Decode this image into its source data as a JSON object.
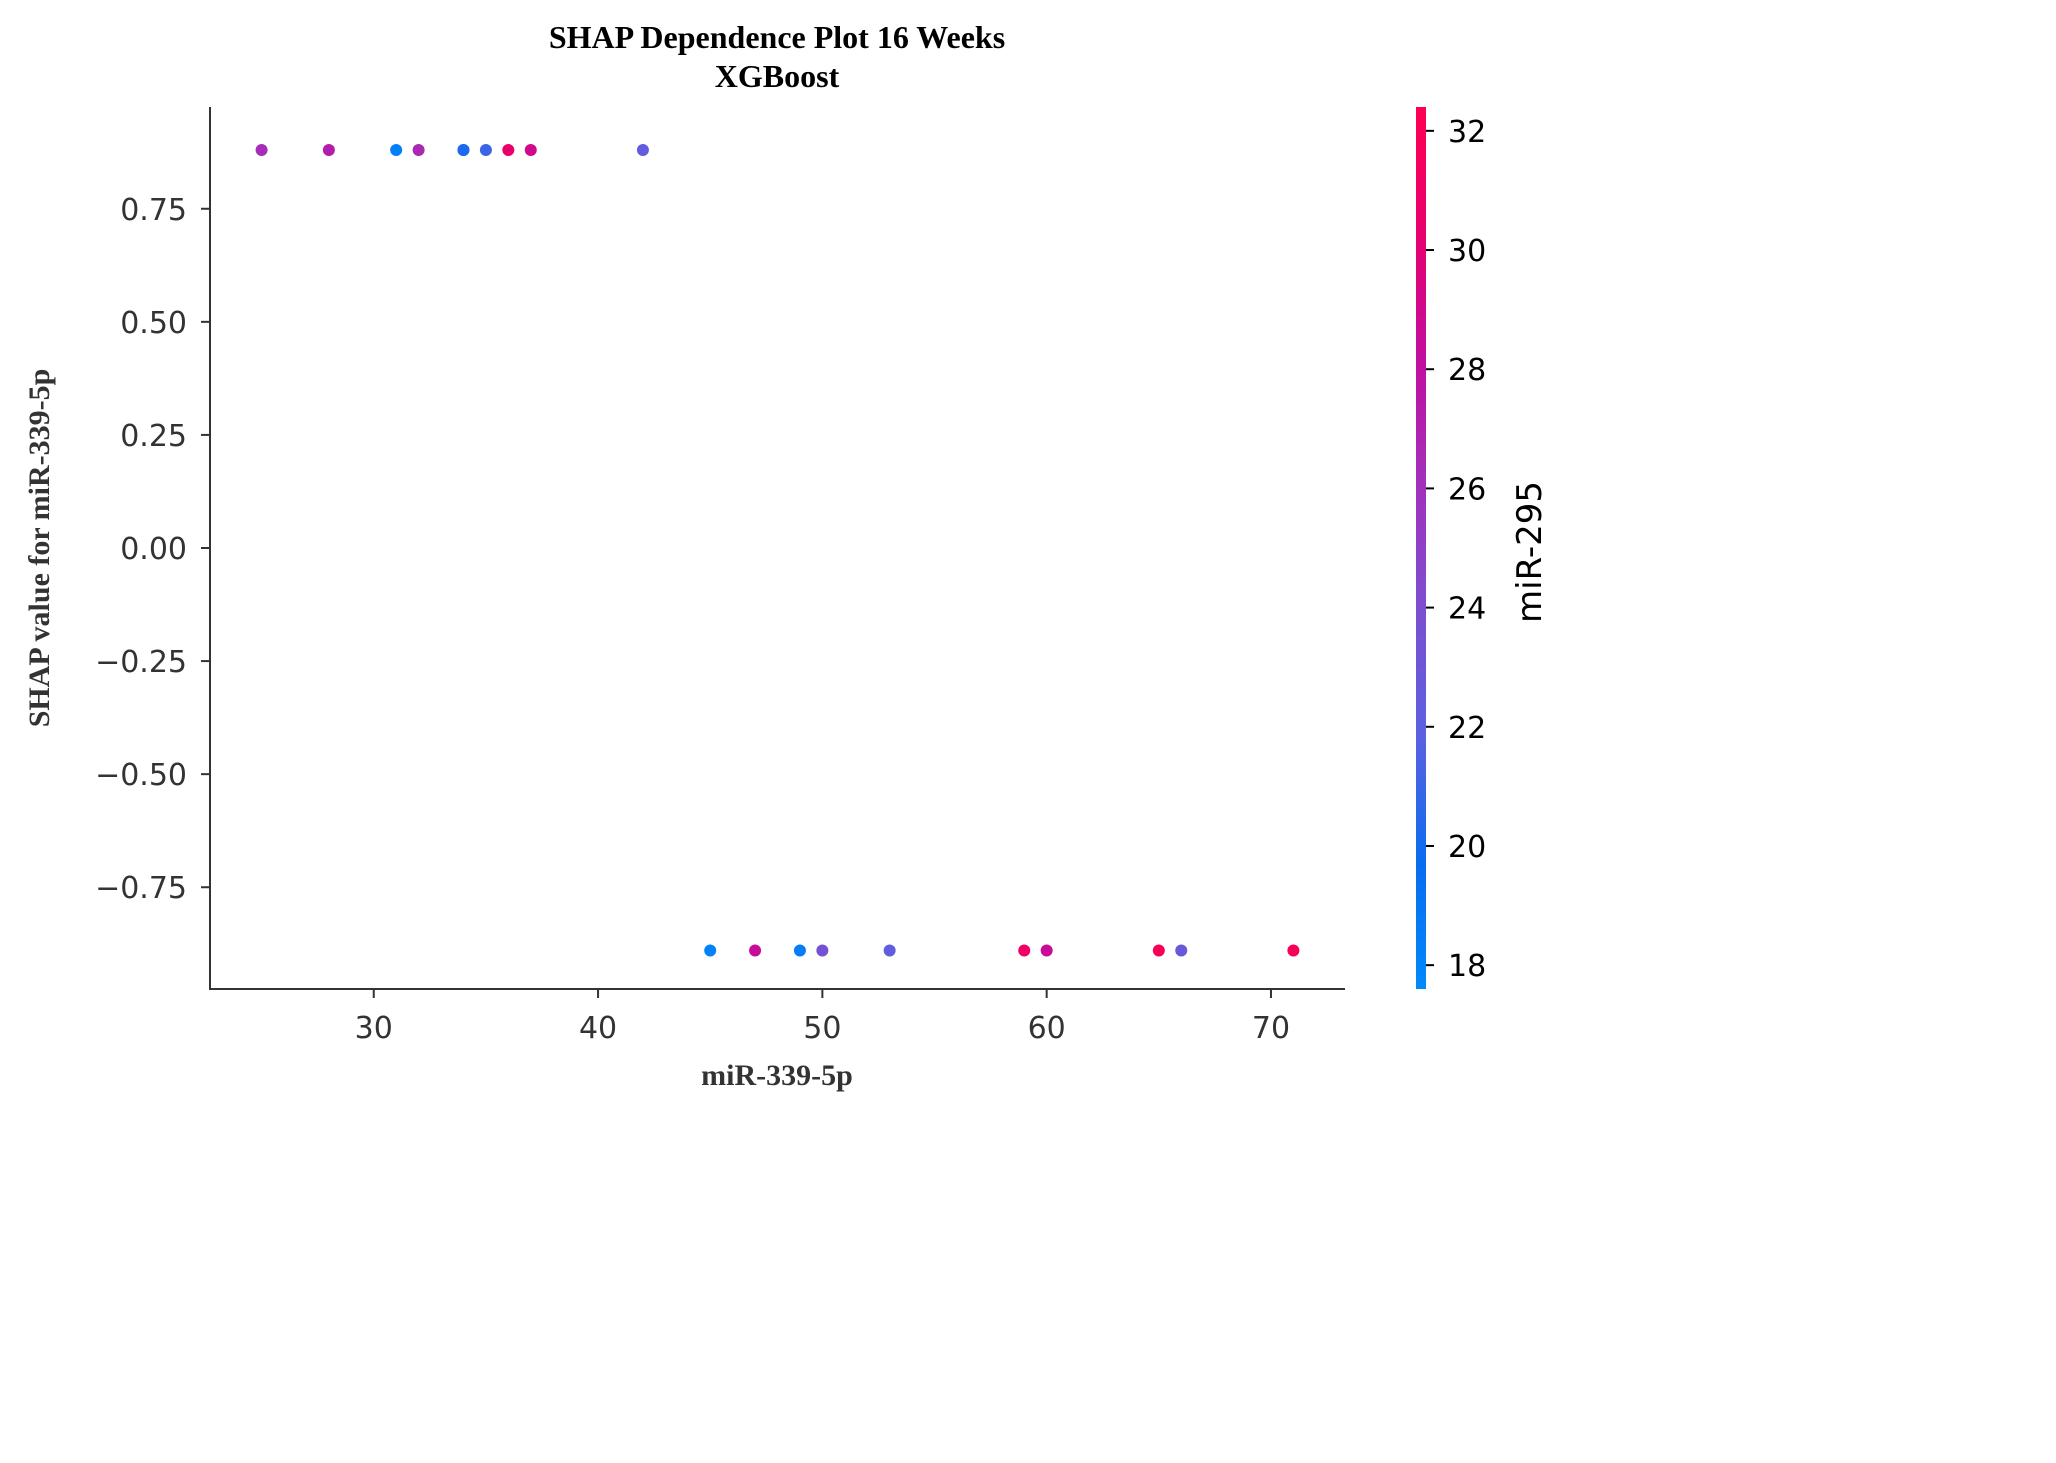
{
  "chart_data": {
    "type": "scatter",
    "title": "SHAP Dependence Plot 16 Weeks",
    "subtitle": "XGBoost",
    "xlabel": "miR-339-5p",
    "ylabel": "SHAP value for miR-339-5p",
    "xlim": [
      22.7,
      73.3
    ],
    "ylim": [
      -0.975,
      0.975
    ],
    "xticks": [
      30,
      40,
      50,
      60,
      70
    ],
    "xtick_labels": [
      "30",
      "40",
      "50",
      "60",
      "70"
    ],
    "yticks": [
      0.75,
      0.5,
      0.25,
      0.0,
      -0.25,
      -0.5,
      -0.75
    ],
    "ytick_labels": [
      "0.75",
      "0.50",
      "0.25",
      "0.00",
      "−0.25",
      "−0.50",
      "−0.75"
    ],
    "grid": false,
    "colorbar": {
      "label": "miR-295",
      "range": [
        17.6,
        32.4
      ],
      "ticks": [
        18,
        20,
        22,
        24,
        26,
        28,
        30,
        32
      ],
      "tick_labels": [
        "18",
        "20",
        "22",
        "24",
        "26",
        "28",
        "30",
        "32"
      ],
      "colormap": [
        "#008afb",
        "#0a6cf0",
        "#5a61e1",
        "#7c4fd0",
        "#a131bb",
        "#c20e9e",
        "#e7006e",
        "#ff0051"
      ]
    },
    "points": [
      {
        "x": 25,
        "y": 0.88,
        "c": 26.3
      },
      {
        "x": 28,
        "y": 0.88,
        "c": 27.3
      },
      {
        "x": 31,
        "y": 0.88,
        "c": 18.3
      },
      {
        "x": 32,
        "y": 0.88,
        "c": 26.5
      },
      {
        "x": 34,
        "y": 0.88,
        "c": 19.5
      },
      {
        "x": 34,
        "y": 0.88,
        "c": 20.2
      },
      {
        "x": 35,
        "y": 0.88,
        "c": 21.0
      },
      {
        "x": 36,
        "y": 0.88,
        "c": 30.5
      },
      {
        "x": 37,
        "y": 0.88,
        "c": 29.0
      },
      {
        "x": 42,
        "y": 0.88,
        "c": 22.4
      },
      {
        "x": 45,
        "y": -0.89,
        "c": 18.2
      },
      {
        "x": 47,
        "y": -0.89,
        "c": 28.4
      },
      {
        "x": 49,
        "y": -0.89,
        "c": 18.5
      },
      {
        "x": 50,
        "y": -0.89,
        "c": 23.6
      },
      {
        "x": 53,
        "y": -0.89,
        "c": 22.2
      },
      {
        "x": 59,
        "y": -0.89,
        "c": 31.2
      },
      {
        "x": 60,
        "y": -0.89,
        "c": 28.5
      },
      {
        "x": 65,
        "y": -0.89,
        "c": 31.8
      },
      {
        "x": 66,
        "y": -0.89,
        "c": 22.6
      },
      {
        "x": 71,
        "y": -0.89,
        "c": 31.9
      }
    ]
  }
}
